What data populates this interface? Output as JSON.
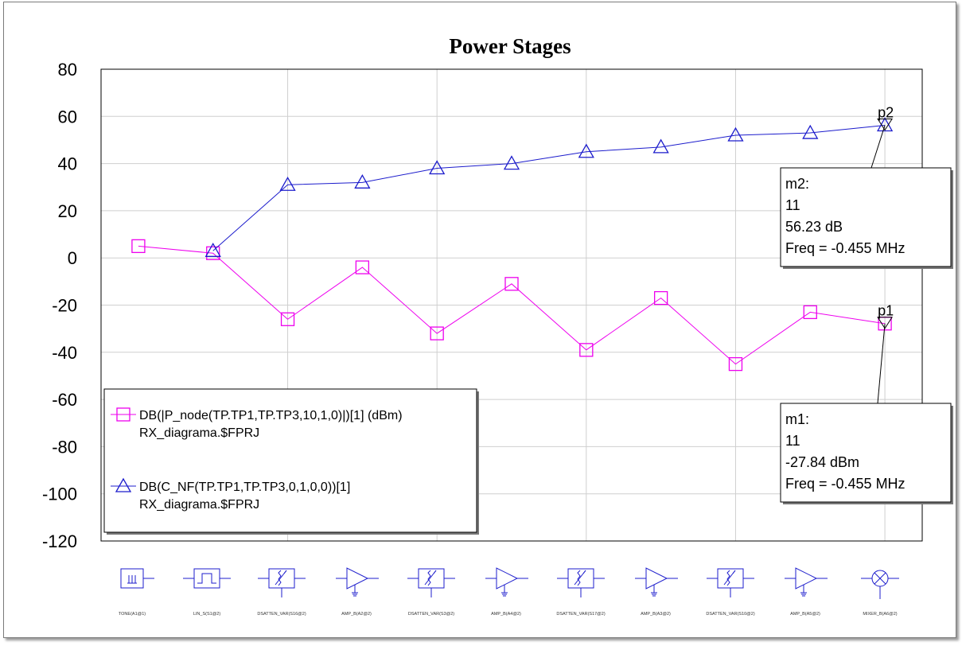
{
  "chart_data": {
    "type": "line",
    "title": "Power Stages",
    "ylim": [
      -120,
      80
    ],
    "yticks": [
      "80",
      "60",
      "40",
      "20",
      "0",
      "-20",
      "-40",
      "-60",
      "-80",
      "-100",
      "-120"
    ],
    "x": [
      1,
      2,
      3,
      4,
      5,
      6,
      7,
      8,
      9,
      10,
      11
    ],
    "xlim": [
      0.5,
      11.5
    ],
    "grid": true,
    "legend_position": "bottom-left",
    "series": [
      {
        "name": "DB(|P_node(TP.TP1,TP.TP3,10,1,0)|)[1] (dBm)",
        "source": "RX_diagrama.$FPRJ",
        "color": "#ee00ee",
        "marker": "square",
        "x": [
          1,
          2,
          3,
          4,
          5,
          6,
          7,
          8,
          9,
          10,
          11
        ],
        "values": [
          5,
          2,
          -26,
          -4,
          -32,
          -11,
          -39,
          -17,
          -45,
          -23,
          -27.84
        ]
      },
      {
        "name": "DB(C_NF(TP.TP1,TP.TP3,0,1,0,0))[1]",
        "source": "RX_diagrama.$FPRJ",
        "color": "#1c1ccc",
        "marker": "triangle",
        "x": [
          2,
          3,
          4,
          5,
          6,
          7,
          8,
          9,
          10,
          11
        ],
        "values": [
          3,
          31,
          32,
          38,
          40,
          45,
          47,
          52,
          53,
          56.23
        ]
      }
    ],
    "markers": [
      {
        "id": "p2",
        "series": 1,
        "x": 11,
        "y": 56.23,
        "lines": [
          "m2:",
          "11",
          "56.23 dB",
          "Freq = -0.455 MHz"
        ]
      },
      {
        "id": "p1",
        "series": 0,
        "x": 11,
        "y": -27.84,
        "lines": [
          "m1:",
          "11",
          "-27.84 dBm",
          "Freq = -0.455 MHz"
        ]
      }
    ],
    "components": [
      {
        "label": "TONE(A1@1)",
        "symbol": "tone"
      },
      {
        "label": "LIN_S(S1@2)",
        "symbol": "filter"
      },
      {
        "label": "DSATTEN_VAR(S16@2)",
        "symbol": "atten"
      },
      {
        "label": "AMP_B(A2@2)",
        "symbol": "amp"
      },
      {
        "label": "DSATTEN_VAR(S3@2)",
        "symbol": "atten"
      },
      {
        "label": "AMP_B(A4@2)",
        "symbol": "amp"
      },
      {
        "label": "DSATTEN_VAR(S17@2)",
        "symbol": "atten"
      },
      {
        "label": "AMP_B(A3@2)",
        "symbol": "amp"
      },
      {
        "label": "DSATTEN_VAR(S10@2)",
        "symbol": "atten"
      },
      {
        "label": "AMP_B(A5@2)",
        "symbol": "amp"
      },
      {
        "label": "MIXER_B(A6@2)",
        "symbol": "mixer"
      }
    ]
  }
}
